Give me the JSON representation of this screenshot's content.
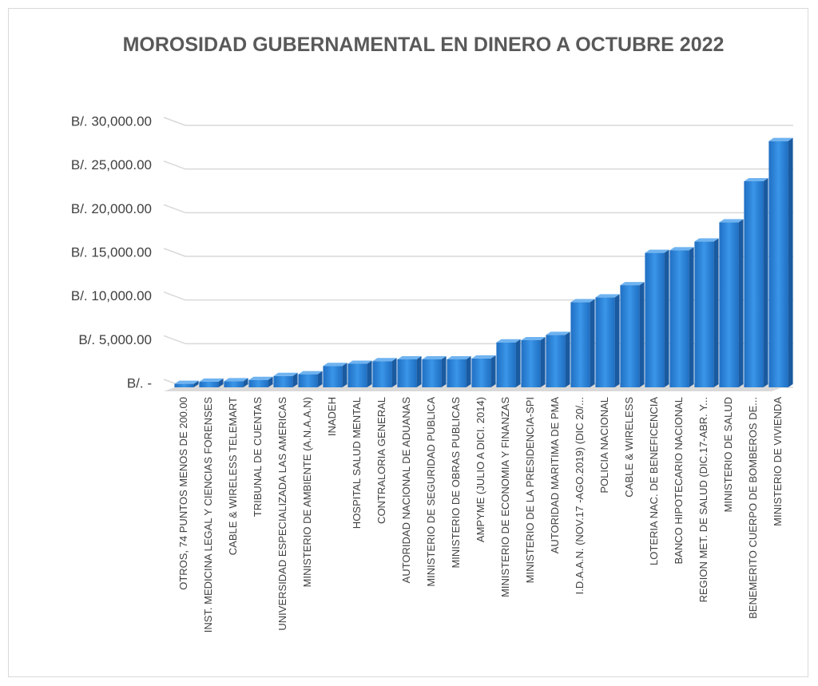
{
  "chart_data": {
    "type": "bar3d",
    "title": "MOROSIDAD GUBERNAMENTAL EN DINERO A OCTUBRE 2022",
    "categories": [
      "OTROS,  74 PUNTOS MENOS DE 200.00",
      "INST. MEDICINA LEGAL Y CIENCIAS FORENSES",
      "CABLE & WIRELESS TELEMART",
      "TRIBUNAL DE CUENTAS",
      "UNIVERSIDAD ESPECIALIZADA LAS AMERICAS",
      "MINISTERIO DE AMBIENTE (A.N.A.A.N)",
      "INADEH",
      "HOSPITAL SALUD MENTAL",
      "CONTRALORIA GENERAL",
      "AUTORIDAD NACIONAL DE ADUANAS",
      "MINISTERIO DE SEGURIDAD PUBLICA",
      "MINISTERIO DE OBRAS PUBLICAS",
      "AMPYME     (JULIO A DICI. 2014)",
      "MINISTERIO DE ECONOMIA Y FINANZAS",
      "MINISTERIO DE LA PRESIDENCIA-SPI",
      "AUTORIDAD MARITIMA DE PMA",
      "I.D.A.A.N. (NOV.17 -AGO.2019)  (DIC 20/...",
      "POLICIA  NACIONAL",
      "CABLE & WIRELESS",
      "LOTERIA NAC. DE BENEFICENCIA",
      "BANCO HIPOTECARIO NACIONAL",
      "REGION MET. DE SALUD (DIC.17-ABR. Y...",
      "MINISTERIO DE SALUD",
      "BENEMERITO CUERPO DE BOMBEROS DE...",
      "MINISTERIO DE VIVIENDA"
    ],
    "values": [
      400,
      650,
      700,
      850,
      1300,
      1500,
      2450,
      2700,
      3000,
      3200,
      3200,
      3200,
      3300,
      5150,
      5400,
      6000,
      9750,
      10300,
      11700,
      15400,
      15700,
      16700,
      18900,
      23600,
      28200
    ],
    "color": "#2e86de",
    "ylim": [
      0,
      30000
    ],
    "yticks": [
      {
        "value": 0,
        "label": "B/. -"
      },
      {
        "value": 5000,
        "label": "B/. 5,000.00"
      },
      {
        "value": 10000,
        "label": "B/. 10,000.00"
      },
      {
        "value": 15000,
        "label": "B/. 15,000.00"
      },
      {
        "value": 20000,
        "label": "B/. 20,000.00"
      },
      {
        "value": 25000,
        "label": "B/. 25,000.00"
      },
      {
        "value": 30000,
        "label": "B/. 30,000.00"
      }
    ],
    "grid": true
  }
}
